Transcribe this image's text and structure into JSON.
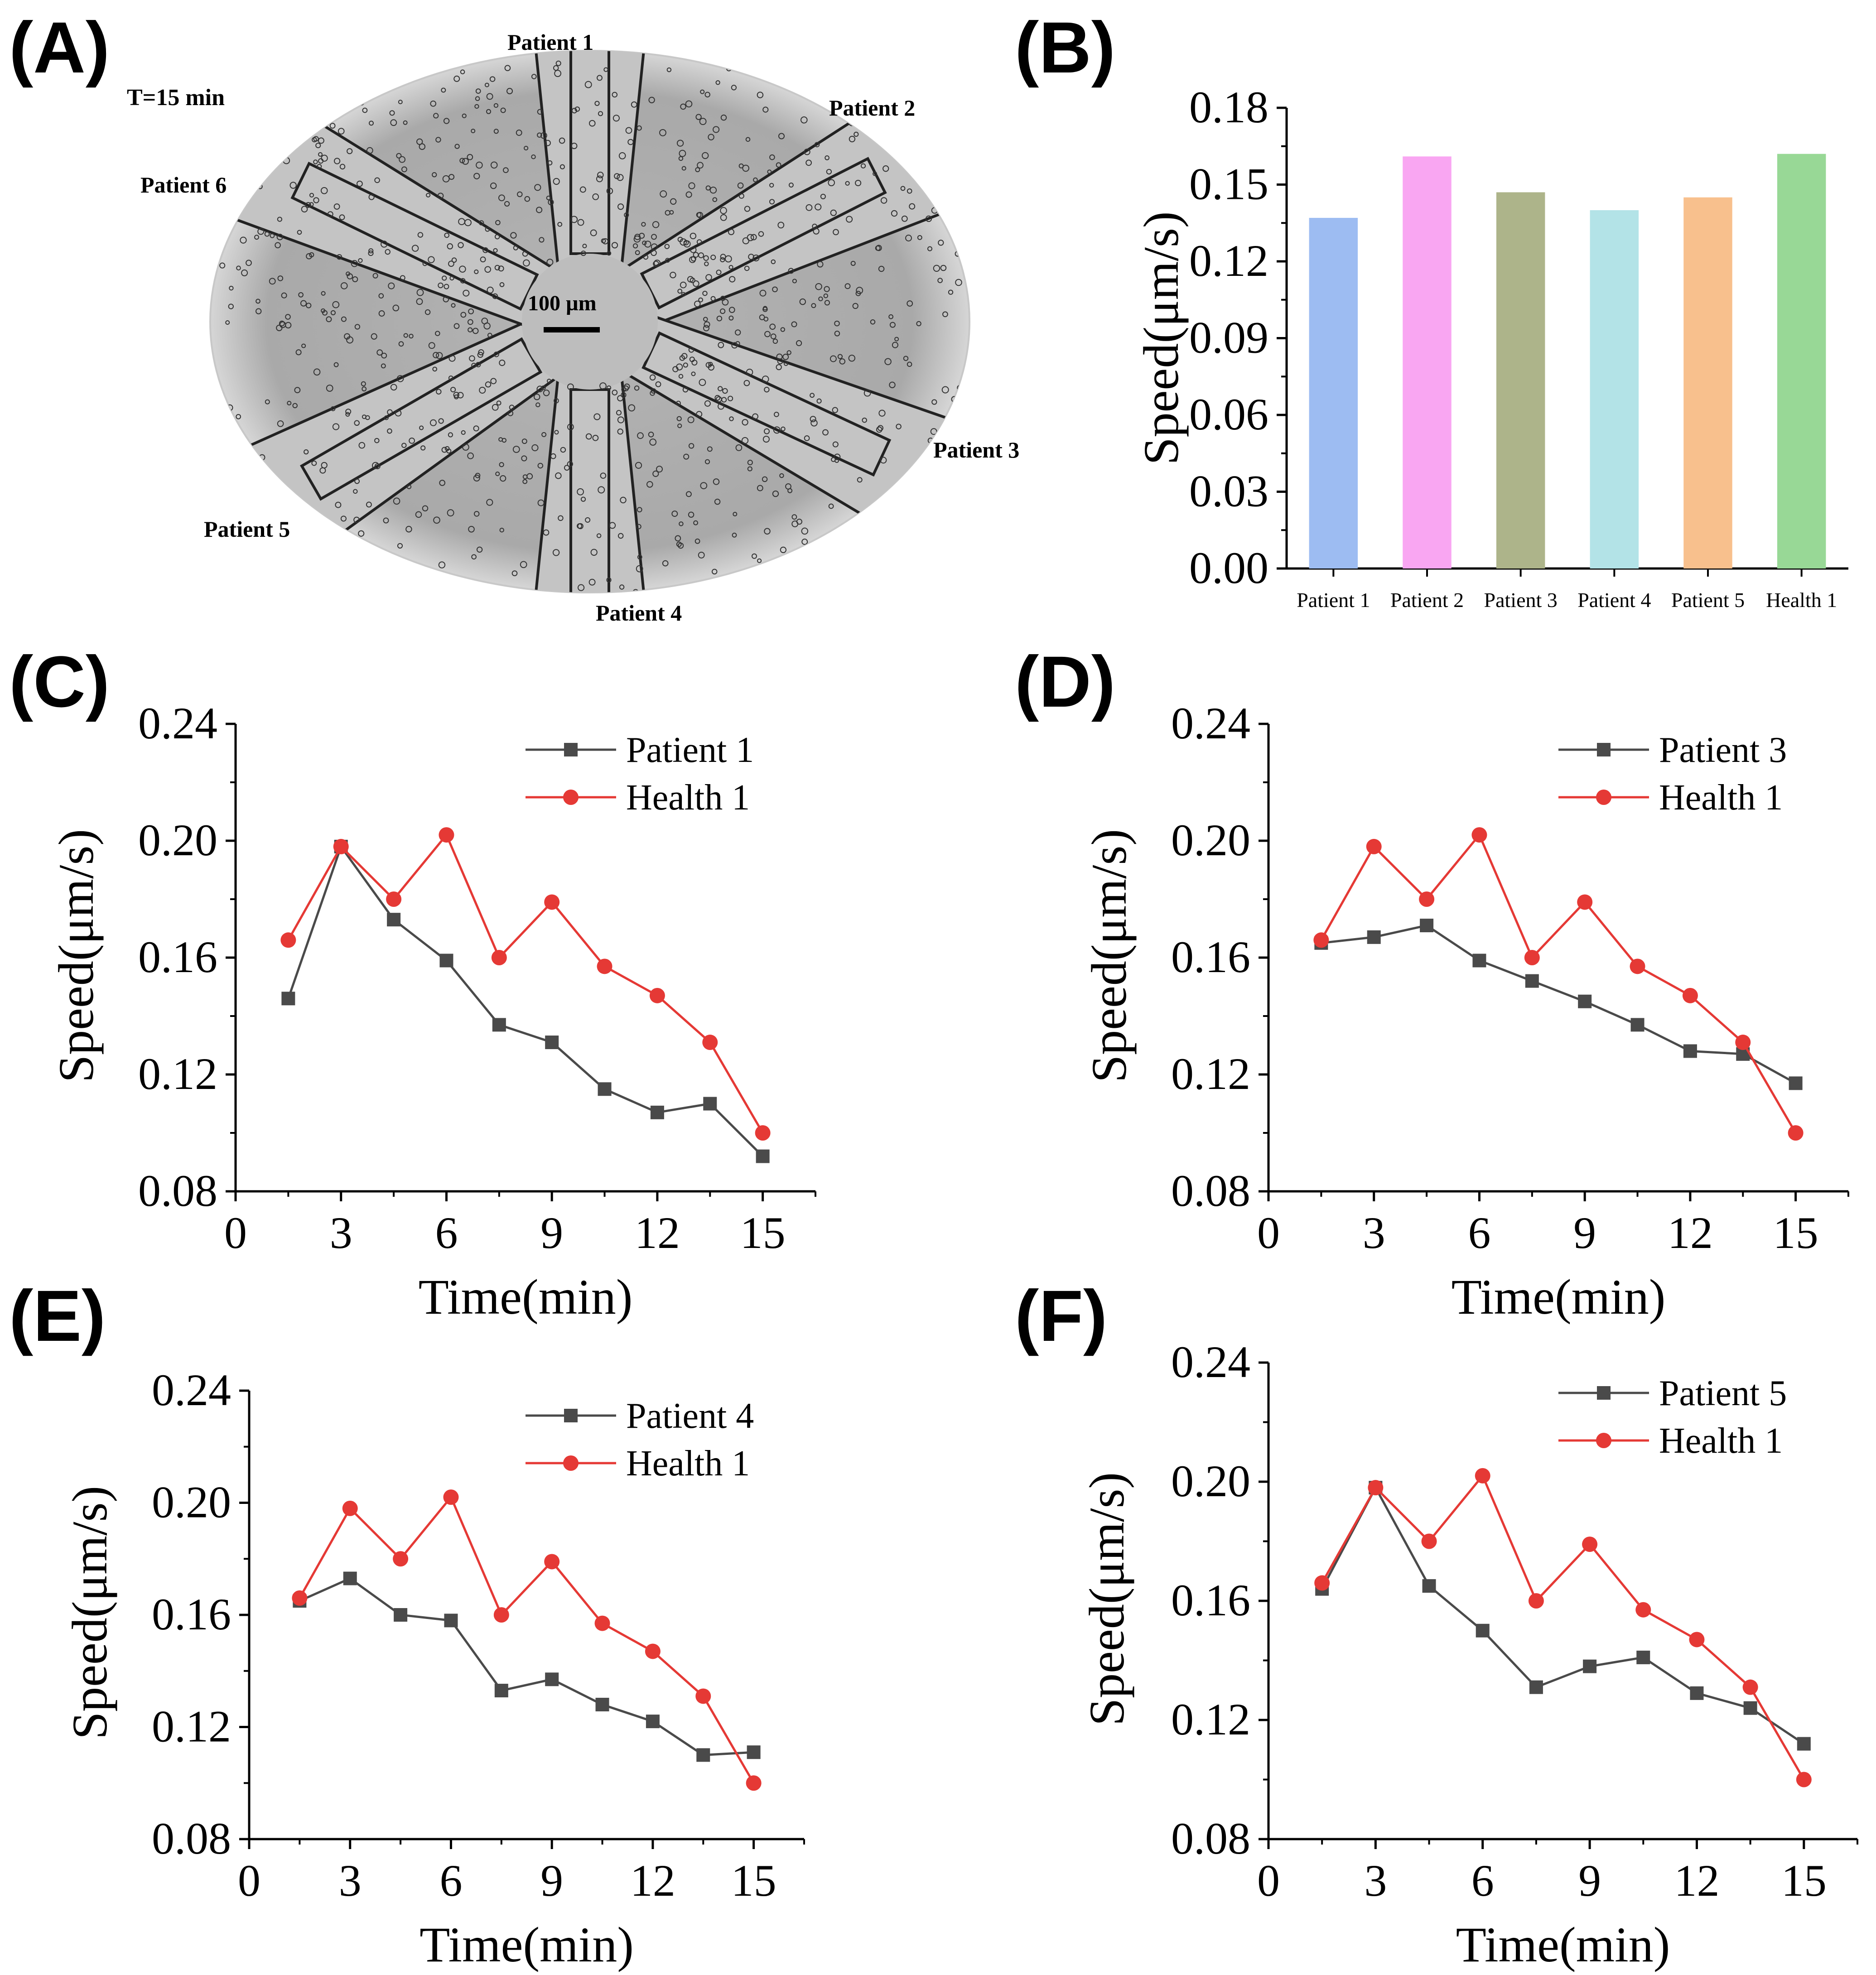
{
  "panels": {
    "A": {
      "label": "(A)",
      "time_label": "T=15 min",
      "scale_bar": "100 µm",
      "outlets": [
        "Patient 1",
        "Patient 2",
        "Patient 3",
        "Patient 4",
        "Patient 5",
        "Patient 6"
      ]
    },
    "B": {
      "label": "(B)"
    },
    "C": {
      "label": "(C)"
    },
    "D": {
      "label": "(D)"
    },
    "E": {
      "label": "(E)"
    },
    "F": {
      "label": "(F)"
    }
  },
  "chart_data": [
    {
      "panel": "B",
      "type": "bar",
      "ylabel": "Speed(μm/s)",
      "ylim": [
        0,
        0.18
      ],
      "yticks": [
        "0.00",
        "0.03",
        "0.06",
        "0.09",
        "0.12",
        "0.15",
        "0.18"
      ],
      "categories": [
        "Patient 1",
        "Patient 2",
        "Patient 3",
        "Patient 4",
        "Patient 5",
        "Health 1"
      ],
      "values": [
        0.137,
        0.161,
        0.147,
        0.14,
        0.145,
        0.162
      ],
      "colors": [
        "#9dbcf2",
        "#f9a6f2",
        "#adb48a",
        "#b3e3e7",
        "#f8c08d",
        "#98d896"
      ]
    },
    {
      "panel": "C",
      "type": "line",
      "xlabel": "Time(min)",
      "ylabel": "Speed(μm/s)",
      "xlim": [
        0,
        16.5
      ],
      "ylim": [
        0.08,
        0.24
      ],
      "xticks": [
        "0",
        "3",
        "6",
        "9",
        "12",
        "15"
      ],
      "yticks": [
        "0.08",
        "0.12",
        "0.16",
        "0.20",
        "0.24"
      ],
      "x": [
        1.5,
        3,
        4.5,
        6,
        7.5,
        9,
        10.5,
        12,
        13.5,
        15
      ],
      "series": [
        {
          "name": "Patient 1",
          "color": "#4a4a4a",
          "marker": "square",
          "values": [
            0.146,
            0.198,
            0.173,
            0.159,
            0.137,
            0.131,
            0.115,
            0.107,
            0.11,
            0.092
          ]
        },
        {
          "name": "Health 1",
          "color": "#e53935",
          "marker": "circle",
          "values": [
            0.166,
            0.198,
            0.18,
            0.202,
            0.16,
            0.179,
            0.157,
            0.147,
            0.131,
            0.1
          ]
        }
      ],
      "legend": "top-right"
    },
    {
      "panel": "D",
      "type": "line",
      "xlabel": "Time(min)",
      "ylabel": "Speed(μm/s)",
      "xlim": [
        0,
        16.5
      ],
      "ylim": [
        0.08,
        0.24
      ],
      "xticks": [
        "0",
        "3",
        "6",
        "9",
        "12",
        "15"
      ],
      "yticks": [
        "0.08",
        "0.12",
        "0.16",
        "0.20",
        "0.24"
      ],
      "x": [
        1.5,
        3,
        4.5,
        6,
        7.5,
        9,
        10.5,
        12,
        13.5,
        15
      ],
      "series": [
        {
          "name": "Patient 3",
          "color": "#4a4a4a",
          "marker": "square",
          "values": [
            0.165,
            0.167,
            0.171,
            0.159,
            0.152,
            0.145,
            0.137,
            0.128,
            0.127,
            0.117
          ]
        },
        {
          "name": "Health 1",
          "color": "#e53935",
          "marker": "circle",
          "values": [
            0.166,
            0.198,
            0.18,
            0.202,
            0.16,
            0.179,
            0.157,
            0.147,
            0.131,
            0.1
          ]
        }
      ],
      "legend": "top-right"
    },
    {
      "panel": "E",
      "type": "line",
      "xlabel": "Time(min)",
      "ylabel": "Speed(μm/s)",
      "xlim": [
        0,
        16.5
      ],
      "ylim": [
        0.08,
        0.24
      ],
      "xticks": [
        "0",
        "3",
        "6",
        "9",
        "12",
        "15"
      ],
      "yticks": [
        "0.08",
        "0.12",
        "0.16",
        "0.20",
        "0.24"
      ],
      "x": [
        1.5,
        3,
        4.5,
        6,
        7.5,
        9,
        10.5,
        12,
        13.5,
        15
      ],
      "series": [
        {
          "name": "Patient 4",
          "color": "#4a4a4a",
          "marker": "square",
          "values": [
            0.165,
            0.173,
            0.16,
            0.158,
            0.133,
            0.137,
            0.128,
            0.122,
            0.11,
            0.111
          ]
        },
        {
          "name": "Health 1",
          "color": "#e53935",
          "marker": "circle",
          "values": [
            0.166,
            0.198,
            0.18,
            0.202,
            0.16,
            0.179,
            0.157,
            0.147,
            0.131,
            0.1
          ]
        }
      ],
      "legend": "top-right"
    },
    {
      "panel": "F",
      "type": "line",
      "xlabel": "Time(min)",
      "ylabel": "Speed(μm/s)",
      "xlim": [
        0,
        16.5
      ],
      "ylim": [
        0.08,
        0.24
      ],
      "xticks": [
        "0",
        "3",
        "6",
        "9",
        "12",
        "15"
      ],
      "yticks": [
        "0.08",
        "0.12",
        "0.16",
        "0.20",
        "0.24"
      ],
      "x": [
        1.5,
        3,
        4.5,
        6,
        7.5,
        9,
        10.5,
        12,
        13.5,
        15
      ],
      "series": [
        {
          "name": "Patient 5",
          "color": "#4a4a4a",
          "marker": "square",
          "values": [
            0.164,
            0.198,
            0.165,
            0.15,
            0.131,
            0.138,
            0.141,
            0.129,
            0.124,
            0.112
          ]
        },
        {
          "name": "Health 1",
          "color": "#e53935",
          "marker": "circle",
          "values": [
            0.166,
            0.198,
            0.18,
            0.202,
            0.16,
            0.179,
            0.157,
            0.147,
            0.131,
            0.1
          ]
        }
      ],
      "legend": "top-right"
    }
  ]
}
